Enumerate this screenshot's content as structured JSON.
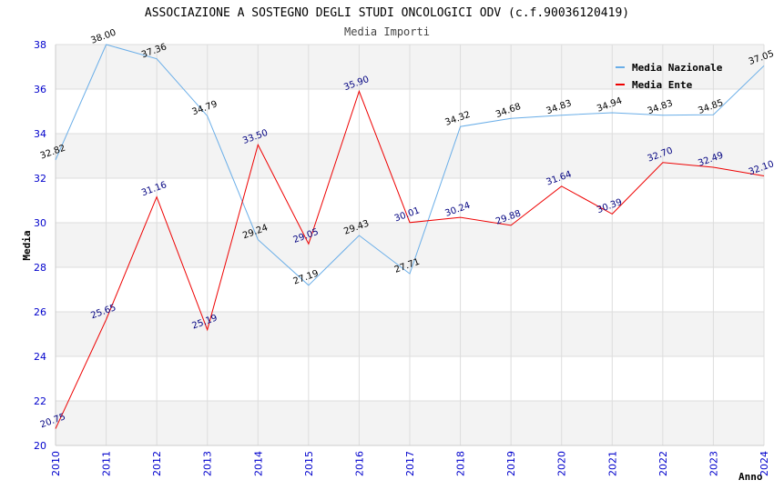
{
  "chart_data": {
    "type": "line",
    "title": "ASSOCIAZIONE A SOSTEGNO DEGLI STUDI ONCOLOGICI ODV (c.f.90036120419)",
    "subtitle": "Media Importi",
    "xlabel": "Anno",
    "ylabel": "Media",
    "x": [
      "2010",
      "2011",
      "2012",
      "2013",
      "2014",
      "2015",
      "2016",
      "2017",
      "2018",
      "2019",
      "2020",
      "2021",
      "2022",
      "2023",
      "2024"
    ],
    "ylim": [
      20,
      38
    ],
    "yticks": [
      20,
      22,
      24,
      26,
      28,
      30,
      32,
      34,
      36,
      38
    ],
    "grid": true,
    "legend_position": "top-right",
    "series": [
      {
        "name": "Media Nazionale",
        "color": "#6aaee8",
        "label_color": "#000000",
        "values": [
          32.82,
          38.0,
          37.36,
          34.79,
          29.24,
          27.19,
          29.43,
          27.71,
          34.32,
          34.68,
          34.83,
          34.94,
          34.83,
          34.85,
          37.05
        ],
        "labels": [
          "32.82",
          "38.00",
          "37.36",
          "34.79",
          "29.24",
          "27.19",
          "29.43",
          "27.71",
          "34.32",
          "34.68",
          "34.83",
          "34.94",
          "34.83",
          "34.85",
          "37.05"
        ]
      },
      {
        "name": "Media Ente",
        "color": "#ee0000",
        "label_color": "#000080",
        "values": [
          20.75,
          25.65,
          31.16,
          25.19,
          33.5,
          29.05,
          35.9,
          30.01,
          30.24,
          29.88,
          31.64,
          30.39,
          32.7,
          32.49,
          32.1
        ],
        "labels": [
          "20.75",
          "25.65",
          "31.16",
          "25.19",
          "33.50",
          "29.05",
          "35.90",
          "30.01",
          "30.24",
          "29.88",
          "31.64",
          "30.39",
          "32.70",
          "32.49",
          "32.10"
        ]
      }
    ]
  }
}
